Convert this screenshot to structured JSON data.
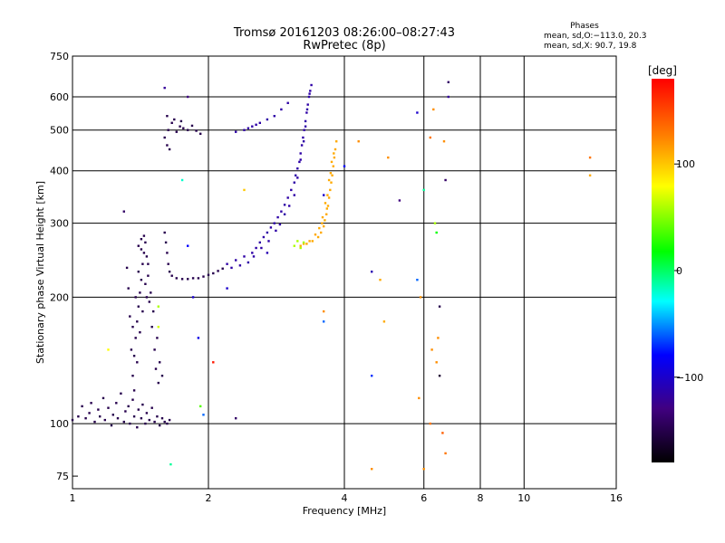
{
  "header": {
    "title": "Tromsø 20161203 08:26:00–08:27:43",
    "subtitle": "RwPretec (8p)",
    "phases_title": "Phases",
    "phases_o": "mean, sd,O:−113.0, 20.3",
    "phases_x": "mean, sd,X:  90.7, 19.8"
  },
  "colorbar": {
    "label": "[deg]",
    "min": -180,
    "max": 180,
    "ticks": [
      {
        "value": 100,
        "label": "100"
      },
      {
        "value": 0,
        "label": "0"
      },
      {
        "value": -100,
        "label": "−100"
      }
    ]
  },
  "chart_data": {
    "type": "scatter",
    "xlabel": "Frequency [MHz]",
    "ylabel": "Stationary phase Virtual Height [km]",
    "xscale": "log",
    "yscale": "log",
    "xlim": [
      1,
      16
    ],
    "ylim": [
      70,
      750
    ],
    "xticks": [
      {
        "value": 1,
        "label": "1"
      },
      {
        "value": 2,
        "label": "2"
      },
      {
        "value": 4,
        "label": "4"
      },
      {
        "value": 6,
        "label": "6"
      },
      {
        "value": 8,
        "label": "8"
      },
      {
        "value": 10,
        "label": "10"
      },
      {
        "value": 16,
        "label": "16"
      }
    ],
    "yticks": [
      {
        "value": 75,
        "label": "75"
      },
      {
        "value": 100,
        "label": "100"
      },
      {
        "value": 200,
        "label": "200"
      },
      {
        "value": 300,
        "label": "300"
      },
      {
        "value": 400,
        "label": "400"
      },
      {
        "value": 500,
        "label": "500"
      },
      {
        "value": 600,
        "label": "600"
      },
      {
        "value": 750,
        "label": "750"
      }
    ],
    "grid": true,
    "series": [
      {
        "color_phase": -150,
        "points": [
          [
            1.0,
            102
          ],
          [
            1.03,
            104
          ],
          [
            1.05,
            110
          ],
          [
            1.07,
            103
          ],
          [
            1.09,
            106
          ],
          [
            1.1,
            112
          ],
          [
            1.12,
            101
          ],
          [
            1.14,
            108
          ],
          [
            1.15,
            104
          ],
          [
            1.17,
            115
          ],
          [
            1.18,
            102
          ],
          [
            1.2,
            109
          ],
          [
            1.22,
            99
          ],
          [
            1.23,
            105
          ],
          [
            1.25,
            112
          ],
          [
            1.26,
            103
          ],
          [
            1.28,
            118
          ],
          [
            1.3,
            101
          ],
          [
            1.31,
            107
          ],
          [
            1.33,
            110
          ],
          [
            1.34,
            100
          ],
          [
            1.36,
            114
          ],
          [
            1.37,
            104
          ],
          [
            1.39,
            98
          ],
          [
            1.4,
            108
          ],
          [
            1.42,
            103
          ],
          [
            1.43,
            111
          ],
          [
            1.45,
            100
          ],
          [
            1.46,
            106
          ],
          [
            1.48,
            102
          ],
          [
            1.5,
            109
          ],
          [
            1.52,
            101
          ],
          [
            1.54,
            104
          ],
          [
            1.56,
            99
          ],
          [
            1.58,
            103
          ],
          [
            1.6,
            101
          ],
          [
            1.62,
            100
          ],
          [
            1.64,
            102
          ],
          [
            1.36,
            130
          ],
          [
            1.37,
            145
          ],
          [
            1.38,
            160
          ],
          [
            1.39,
            175
          ],
          [
            1.4,
            190
          ],
          [
            1.41,
            205
          ],
          [
            1.42,
            220
          ],
          [
            1.43,
            240
          ],
          [
            1.44,
            255
          ],
          [
            1.45,
            270
          ],
          [
            1.35,
            150
          ],
          [
            1.36,
            170
          ],
          [
            1.38,
            200
          ],
          [
            1.4,
            230
          ],
          [
            1.42,
            260
          ],
          [
            1.44,
            280
          ],
          [
            1.46,
            250
          ],
          [
            1.47,
            225
          ],
          [
            1.48,
            195
          ],
          [
            1.5,
            170
          ],
          [
            1.52,
            150
          ],
          [
            1.53,
            135
          ],
          [
            1.55,
            125
          ],
          [
            1.37,
            120
          ],
          [
            1.39,
            140
          ],
          [
            1.41,
            165
          ],
          [
            1.43,
            185
          ],
          [
            1.45,
            215
          ],
          [
            1.47,
            240
          ],
          [
            1.49,
            205
          ],
          [
            1.51,
            185
          ],
          [
            1.54,
            160
          ],
          [
            1.56,
            140
          ],
          [
            1.58,
            130
          ],
          [
            1.34,
            180
          ],
          [
            1.33,
            210
          ],
          [
            1.32,
            235
          ],
          [
            1.4,
            265
          ],
          [
            1.42,
            275
          ],
          [
            1.46,
            200
          ],
          [
            1.6,
            285
          ],
          [
            1.61,
            270
          ],
          [
            1.62,
            255
          ],
          [
            1.63,
            240
          ],
          [
            1.64,
            230
          ],
          [
            1.66,
            225
          ],
          [
            1.7,
            222
          ],
          [
            1.75,
            221
          ],
          [
            1.8,
            221
          ],
          [
            1.85,
            222
          ],
          [
            1.9,
            222
          ],
          [
            1.95,
            224
          ],
          [
            2.0,
            226
          ],
          [
            2.05,
            228
          ],
          [
            2.1,
            231
          ],
          [
            2.15,
            234
          ],
          [
            1.6,
            480
          ],
          [
            1.63,
            500
          ],
          [
            1.66,
            520
          ],
          [
            1.7,
            495
          ],
          [
            1.73,
            510
          ],
          [
            1.76,
            505
          ],
          [
            1.8,
            500
          ],
          [
            1.84,
            512
          ],
          [
            1.88,
            498
          ],
          [
            1.92,
            490
          ],
          [
            1.62,
            540
          ],
          [
            1.68,
            530
          ],
          [
            1.74,
            525
          ],
          [
            1.62,
            460
          ],
          [
            1.64,
            450
          ]
        ]
      },
      {
        "color_phase": -115,
        "points": [
          [
            2.2,
            240
          ],
          [
            2.3,
            245
          ],
          [
            2.4,
            250
          ],
          [
            2.5,
            255
          ],
          [
            2.55,
            262
          ],
          [
            2.6,
            270
          ],
          [
            2.65,
            278
          ],
          [
            2.7,
            285
          ],
          [
            2.75,
            293
          ],
          [
            2.8,
            300
          ],
          [
            2.85,
            310
          ],
          [
            2.9,
            320
          ],
          [
            2.95,
            332
          ],
          [
            3.0,
            345
          ],
          [
            3.05,
            360
          ],
          [
            3.1,
            375
          ],
          [
            3.12,
            390
          ],
          [
            3.15,
            405
          ],
          [
            3.18,
            420
          ],
          [
            3.2,
            440
          ],
          [
            3.22,
            460
          ],
          [
            3.24,
            480
          ],
          [
            3.26,
            500
          ],
          [
            3.28,
            525
          ],
          [
            3.3,
            550
          ],
          [
            3.32,
            575
          ],
          [
            3.34,
            600
          ],
          [
            3.36,
            620
          ],
          [
            3.38,
            640
          ],
          [
            3.35,
            610
          ],
          [
            3.31,
            560
          ],
          [
            3.28,
            510
          ],
          [
            3.25,
            470
          ],
          [
            3.2,
            425
          ],
          [
            3.15,
            385
          ],
          [
            3.1,
            350
          ],
          [
            3.02,
            330
          ],
          [
            2.95,
            315
          ],
          [
            2.88,
            298
          ],
          [
            2.82,
            288
          ],
          [
            2.72,
            272
          ],
          [
            2.62,
            262
          ],
          [
            2.52,
            250
          ],
          [
            2.45,
            242
          ],
          [
            2.35,
            238
          ],
          [
            2.25,
            235
          ],
          [
            2.3,
            495
          ],
          [
            2.4,
            500
          ],
          [
            2.5,
            510
          ],
          [
            2.6,
            520
          ],
          [
            2.7,
            530
          ],
          [
            2.8,
            540
          ],
          [
            2.9,
            560
          ],
          [
            3.0,
            580
          ],
          [
            2.45,
            505
          ],
          [
            2.55,
            515
          ]
        ]
      },
      {
        "color_phase": 110,
        "points": [
          [
            3.2,
            265
          ],
          [
            3.3,
            268
          ],
          [
            3.4,
            272
          ],
          [
            3.5,
            278
          ],
          [
            3.55,
            285
          ],
          [
            3.6,
            295
          ],
          [
            3.62,
            305
          ],
          [
            3.65,
            315
          ],
          [
            3.68,
            330
          ],
          [
            3.7,
            345
          ],
          [
            3.72,
            360
          ],
          [
            3.74,
            375
          ],
          [
            3.76,
            390
          ],
          [
            3.78,
            410
          ],
          [
            3.8,
            430
          ],
          [
            3.82,
            450
          ],
          [
            3.84,
            470
          ],
          [
            3.75,
            420
          ],
          [
            3.7,
            380
          ],
          [
            3.63,
            335
          ],
          [
            3.58,
            310
          ],
          [
            3.52,
            292
          ],
          [
            3.45,
            282
          ],
          [
            3.35,
            272
          ],
          [
            3.25,
            268
          ],
          [
            3.57,
            300
          ],
          [
            3.67,
            350
          ],
          [
            3.73,
            395
          ],
          [
            3.79,
            440
          ],
          [
            3.66,
            325
          ]
        ]
      },
      {
        "color_phase": 60,
        "points": [
          [
            3.1,
            265
          ],
          [
            3.2,
            262
          ],
          [
            3.25,
            270
          ],
          [
            3.15,
            272
          ]
        ]
      }
    ],
    "scattered": [
      {
        "x": 1.6,
        "y": 630,
        "phase": -120
      },
      {
        "x": 1.8,
        "y": 600,
        "phase": -130
      },
      {
        "x": 1.75,
        "y": 380,
        "phase": -20
      },
      {
        "x": 1.8,
        "y": 265,
        "phase": -80
      },
      {
        "x": 1.85,
        "y": 200,
        "phase": -100
      },
      {
        "x": 1.9,
        "y": 160,
        "phase": -90
      },
      {
        "x": 1.92,
        "y": 110,
        "phase": 40
      },
      {
        "x": 1.95,
        "y": 105,
        "phase": -60
      },
      {
        "x": 1.65,
        "y": 80,
        "phase": -10
      },
      {
        "x": 2.05,
        "y": 140,
        "phase": 170
      },
      {
        "x": 2.2,
        "y": 210,
        "phase": -100
      },
      {
        "x": 2.3,
        "y": 103,
        "phase": -140
      },
      {
        "x": 2.4,
        "y": 360,
        "phase": 100
      },
      {
        "x": 2.7,
        "y": 255,
        "phase": -110
      },
      {
        "x": 3.6,
        "y": 350,
        "phase": -100
      },
      {
        "x": 3.6,
        "y": 185,
        "phase": 120
      },
      {
        "x": 3.6,
        "y": 175,
        "phase": -60
      },
      {
        "x": 4.0,
        "y": 410,
        "phase": -80
      },
      {
        "x": 4.3,
        "y": 470,
        "phase": 120
      },
      {
        "x": 4.6,
        "y": 230,
        "phase": -110
      },
      {
        "x": 4.8,
        "y": 220,
        "phase": 110
      },
      {
        "x": 5.0,
        "y": 430,
        "phase": 120
      },
      {
        "x": 4.6,
        "y": 130,
        "phase": -70
      },
      {
        "x": 4.9,
        "y": 175,
        "phase": 110
      },
      {
        "x": 4.6,
        "y": 78,
        "phase": 120
      },
      {
        "x": 5.3,
        "y": 340,
        "phase": -130
      },
      {
        "x": 5.8,
        "y": 550,
        "phase": -100
      },
      {
        "x": 5.8,
        "y": 220,
        "phase": -60
      },
      {
        "x": 5.9,
        "y": 200,
        "phase": 120
      },
      {
        "x": 5.85,
        "y": 115,
        "phase": 120
      },
      {
        "x": 6.0,
        "y": 78,
        "phase": 120
      },
      {
        "x": 6.3,
        "y": 560,
        "phase": 120
      },
      {
        "x": 6.35,
        "y": 300,
        "phase": 60
      },
      {
        "x": 6.4,
        "y": 285,
        "phase": 20
      },
      {
        "x": 6.5,
        "y": 190,
        "phase": -150
      },
      {
        "x": 6.45,
        "y": 160,
        "phase": 120
      },
      {
        "x": 6.4,
        "y": 140,
        "phase": 120
      },
      {
        "x": 6.5,
        "y": 130,
        "phase": -160
      },
      {
        "x": 6.6,
        "y": 95,
        "phase": 140
      },
      {
        "x": 6.7,
        "y": 85,
        "phase": 130
      },
      {
        "x": 6.8,
        "y": 650,
        "phase": -140
      },
      {
        "x": 6.8,
        "y": 600,
        "phase": -120
      },
      {
        "x": 6.65,
        "y": 470,
        "phase": 120
      },
      {
        "x": 6.7,
        "y": 380,
        "phase": -140
      },
      {
        "x": 6.2,
        "y": 480,
        "phase": 130
      },
      {
        "x": 6.0,
        "y": 360,
        "phase": -10
      },
      {
        "x": 6.25,
        "y": 150,
        "phase": 120
      },
      {
        "x": 6.2,
        "y": 100,
        "phase": 130
      },
      {
        "x": 14.0,
        "y": 430,
        "phase": 130
      },
      {
        "x": 14.0,
        "y": 390,
        "phase": 110
      },
      {
        "x": 1.55,
        "y": 190,
        "phase": 60
      },
      {
        "x": 1.55,
        "y": 170,
        "phase": 70
      },
      {
        "x": 1.3,
        "y": 320,
        "phase": -140
      },
      {
        "x": 1.2,
        "y": 150,
        "phase": 80
      }
    ]
  }
}
